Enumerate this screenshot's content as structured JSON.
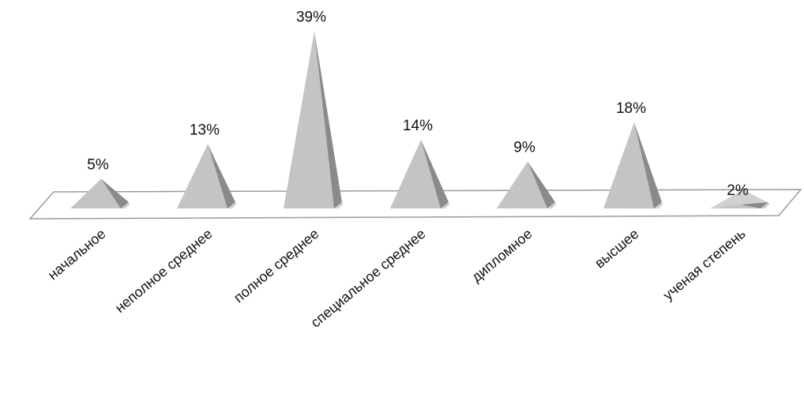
{
  "chart_data": {
    "type": "bar",
    "style": "3d-pyramid",
    "categories": [
      "начальное",
      "неполное среднее",
      "полное среднее",
      "специальное среднее",
      "дипломное",
      "высшее",
      "ученая степень"
    ],
    "values": [
      5,
      13,
      39,
      14,
      9,
      18,
      2
    ],
    "value_labels": [
      "5%",
      "13%",
      "39%",
      "14%",
      "9%",
      "18%",
      "2%"
    ],
    "unit": "%",
    "title": "",
    "xlabel": "",
    "ylabel": "",
    "ylim": [
      0,
      40
    ],
    "grid": false,
    "legend": "none",
    "colors": {
      "pyramid_light": "#c4c4c4",
      "pyramid_dark": "#8a8a8a",
      "pyramid_shadow": "#7a7a7a",
      "floor_stroke": "#9a9a9a",
      "floor_fill": "#ffffff"
    }
  }
}
